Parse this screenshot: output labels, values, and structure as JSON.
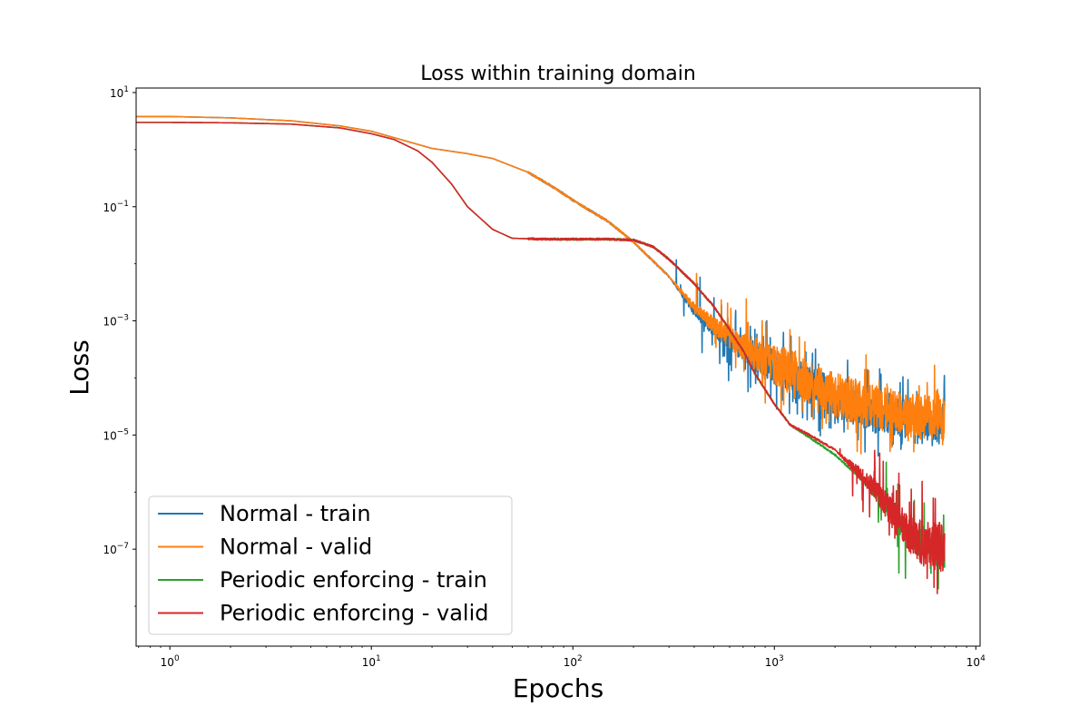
{
  "chart_data": {
    "type": "line",
    "title": "Loss within training domain",
    "xlabel": "Epochs",
    "ylabel": "Loss",
    "xscale": "log",
    "yscale": "log",
    "xlim": [
      0.68,
      10500
    ],
    "ylim": [
      2e-09,
      12
    ],
    "x_ticks": [
      {
        "value": 1,
        "base": "10",
        "exp": "0"
      },
      {
        "value": 10,
        "base": "10",
        "exp": "1"
      },
      {
        "value": 100,
        "base": "10",
        "exp": "2"
      },
      {
        "value": 1000,
        "base": "10",
        "exp": "3"
      },
      {
        "value": 10000,
        "base": "10",
        "exp": "4"
      }
    ],
    "y_ticks": [
      {
        "value": 10,
        "base": "10",
        "exp": "1"
      },
      {
        "value": 0.1,
        "base": "10",
        "exp": "−1"
      },
      {
        "value": 0.001,
        "base": "10",
        "exp": "−3"
      },
      {
        "value": 1e-05,
        "base": "10",
        "exp": "−5"
      },
      {
        "value": 1e-07,
        "base": "10",
        "exp": "−7"
      }
    ],
    "grid": false,
    "legend_position": "lower-left",
    "series": [
      {
        "name": "Normal - train",
        "color": "#1f77b4",
        "x": [
          0.68,
          1,
          2,
          4,
          7,
          10,
          15,
          20,
          30,
          40,
          60,
          80,
          100,
          150,
          200,
          300,
          400,
          500,
          700,
          1000,
          1500,
          2000,
          3000,
          4000,
          5000,
          6000,
          7000
        ],
        "y": [
          3.8,
          3.8,
          3.6,
          3.2,
          2.6,
          2.1,
          1.4,
          1.05,
          0.85,
          0.7,
          0.4,
          0.22,
          0.13,
          0.055,
          0.024,
          0.006,
          0.0015,
          0.00075,
          0.00035,
          0.00018,
          9e-05,
          5e-05,
          3e-05,
          2.5e-05,
          2e-05,
          2e-05,
          2e-05
        ],
        "noise": {
          "start": 300,
          "amp": 1.4,
          "spike_prob": 0.07,
          "spike_max": 3.2,
          "min_factor": 0.25
        }
      },
      {
        "name": "Normal - valid",
        "color": "#ff7f0e",
        "x": [
          0.68,
          1,
          2,
          4,
          7,
          10,
          15,
          20,
          30,
          40,
          60,
          80,
          100,
          150,
          200,
          300,
          400,
          500,
          700,
          1000,
          1500,
          2000,
          3000,
          4000,
          5000,
          6000,
          7000
        ],
        "y": [
          3.8,
          3.8,
          3.6,
          3.2,
          2.6,
          2.1,
          1.4,
          1.05,
          0.85,
          0.7,
          0.4,
          0.22,
          0.13,
          0.055,
          0.024,
          0.006,
          0.0018,
          0.0009,
          0.0004,
          0.0002,
          0.0001,
          6e-05,
          4e-05,
          3e-05,
          2.5e-05,
          2.5e-05,
          2.5e-05
        ],
        "noise": {
          "start": 300,
          "amp": 1.6,
          "spike_prob": 0.08,
          "spike_max": 3.5,
          "min_factor": 0.25
        }
      },
      {
        "name": "Periodic enforcing - train",
        "color": "#2ca02c",
        "x": [
          0.68,
          1,
          2,
          4,
          7,
          10,
          13,
          17,
          20,
          25,
          30,
          40,
          50,
          70,
          100,
          150,
          200,
          250,
          300,
          400,
          500,
          600,
          700,
          800,
          1000,
          1200,
          1500,
          2000,
          3000,
          4000,
          5000,
          6000,
          7000
        ],
        "y": [
          3.0,
          3.0,
          2.95,
          2.8,
          2.4,
          1.9,
          1.5,
          0.95,
          0.6,
          0.25,
          0.1,
          0.04,
          0.028,
          0.027,
          0.027,
          0.027,
          0.026,
          0.02,
          0.012,
          0.0045,
          0.0018,
          0.0007,
          0.0003,
          0.00012,
          3.5e-05,
          1.5e-05,
          9e-06,
          4.5e-06,
          1.2e-06,
          3.5e-07,
          1.5e-07,
          1.2e-07,
          1.1e-07
        ],
        "noise": {
          "start": 2500,
          "amp": 1.8,
          "spike_prob": 0.07,
          "spike_max": 4.0,
          "min_factor": 0.15
        }
      },
      {
        "name": "Periodic enforcing - valid",
        "color": "#d62728",
        "x": [
          0.68,
          1,
          2,
          4,
          7,
          10,
          13,
          17,
          20,
          25,
          30,
          40,
          50,
          70,
          100,
          150,
          200,
          250,
          300,
          400,
          500,
          600,
          700,
          800,
          1000,
          1200,
          1500,
          2000,
          3000,
          4000,
          5000,
          6000,
          7000
        ],
        "y": [
          3.0,
          3.0,
          2.95,
          2.8,
          2.4,
          1.9,
          1.5,
          0.95,
          0.6,
          0.25,
          0.1,
          0.04,
          0.028,
          0.027,
          0.027,
          0.027,
          0.026,
          0.02,
          0.012,
          0.0045,
          0.0018,
          0.0007,
          0.0003,
          0.00012,
          3.5e-05,
          1.5e-05,
          1e-05,
          5.5e-06,
          1.5e-06,
          4e-07,
          1.8e-07,
          1.3e-07,
          1.2e-07
        ],
        "noise": {
          "start": 2000,
          "amp": 2.2,
          "spike_prob": 0.09,
          "spike_max": 4.5,
          "min_factor": 0.15
        }
      }
    ]
  }
}
